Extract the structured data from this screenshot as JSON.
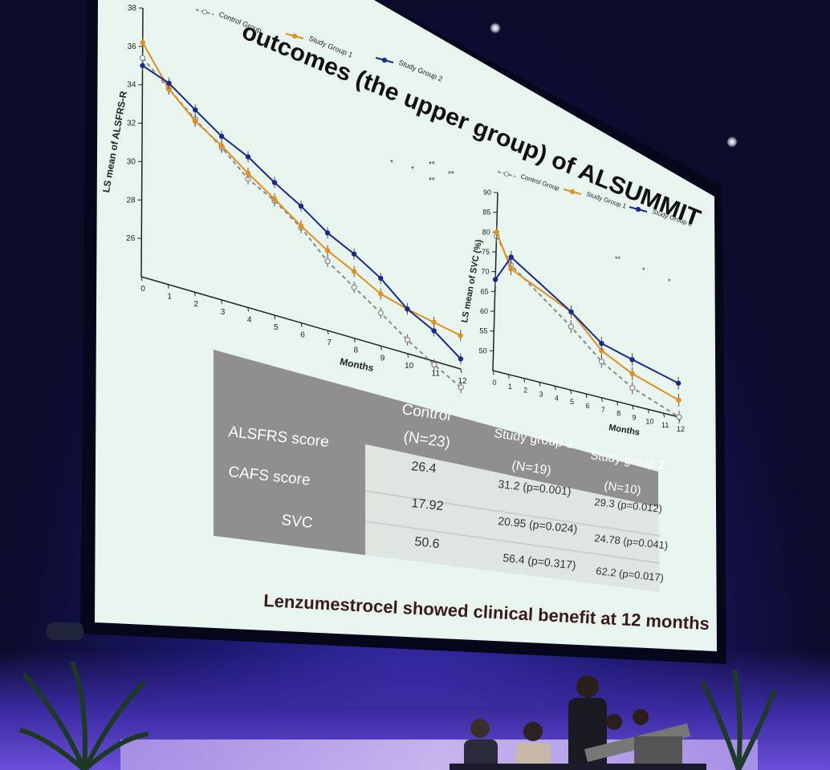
{
  "slide": {
    "title": "outcomes (the upper group) of ALSUMMIT",
    "footer": "Lenzumestrocel showed clinical benefit at 12 months"
  },
  "chart_data": [
    {
      "type": "line",
      "ylabel": "LS mean of ALSFRS-R",
      "xlabel": "Months",
      "x": [
        0,
        1,
        2,
        3,
        4,
        5,
        6,
        7,
        8,
        9,
        10,
        11,
        12
      ],
      "ylim": [
        24,
        38
      ],
      "yticks": [
        26,
        28,
        30,
        32,
        34,
        36,
        38
      ],
      "series": [
        {
          "name": "Control Group",
          "values": [
            35.4,
            34.3,
            33.2,
            32.2,
            31.0,
            30.3,
            29.3,
            27.9,
            26.9,
            25.9,
            24.8,
            23.8,
            22.9
          ],
          "color": "#8a8a8a"
        },
        {
          "name": "Study Group 1",
          "values": [
            36.2,
            34.3,
            33.1,
            32.3,
            31.3,
            30.4,
            29.4,
            28.5,
            27.8,
            27.0,
            26.6,
            26.3,
            26.0
          ],
          "color": "#e0901c"
        },
        {
          "name": "Study Group 2",
          "values": [
            35.0,
            34.6,
            33.7,
            32.8,
            32.2,
            31.3,
            30.5,
            29.5,
            28.8,
            27.9,
            26.6,
            25.8,
            24.6
          ],
          "color": "#1a2a8c"
        }
      ],
      "annotations": [
        "*",
        "*",
        "**",
        "**",
        "**"
      ]
    },
    {
      "type": "line",
      "ylabel": "LS mean of SVC (%)",
      "xlabel": "Months",
      "x": [
        0,
        1,
        2,
        3,
        4,
        5,
        6,
        7,
        8,
        9,
        10,
        11,
        12
      ],
      "ylim": [
        45,
        90
      ],
      "yticks": [
        50,
        55,
        60,
        65,
        70,
        75,
        80,
        85,
        90
      ],
      "series": [
        {
          "name": "Control Group",
          "values": [
            79,
            73,
            null,
            null,
            null,
            62,
            null,
            55,
            null,
            50,
            null,
            null,
            45
          ],
          "color": "#8a8a8a"
        },
        {
          "name": "Study Group 1",
          "values": [
            80,
            72,
            null,
            null,
            null,
            66,
            null,
            58,
            null,
            54,
            null,
            null,
            50
          ],
          "color": "#e0901c"
        },
        {
          "name": "Study Group 2",
          "values": [
            68,
            75,
            null,
            null,
            null,
            66,
            null,
            60,
            null,
            58,
            null,
            null,
            55
          ],
          "color": "#1a2a8c"
        }
      ],
      "annotations": [
        "**",
        "*",
        "*"
      ]
    }
  ],
  "table": {
    "columns": [
      {
        "label": "Control",
        "n": "(N=23)"
      },
      {
        "label": "Study group 1",
        "n": "(N=19)"
      },
      {
        "label": "Study group 2",
        "n": "(N=10)"
      }
    ],
    "rows": [
      {
        "label": "ALSFRS score",
        "values": [
          "26.4",
          "31.2 (p=0.001)",
          "29.3 (p=0.012)"
        ]
      },
      {
        "label": "CAFS score",
        "values": [
          "17.92",
          "20.95 (p=0.024)",
          "24.78 (p=0.041)"
        ]
      },
      {
        "label": "SVC",
        "values": [
          "50.6",
          "56.4 (p=0.317)",
          "62.2 (p=0.017)"
        ]
      }
    ]
  }
}
